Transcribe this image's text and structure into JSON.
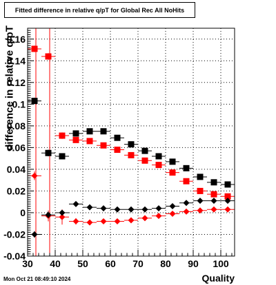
{
  "chart_data": {
    "type": "scatter",
    "title": "Fitted difference in relative q/pT for Global Rec All NoHits",
    "xlabel": "Quality",
    "ylabel": "difference in relative q/pT",
    "xlim": [
      30,
      105
    ],
    "ylim": [
      -0.04,
      0.17
    ],
    "x_ticks": [
      "30",
      "40",
      "50",
      "60",
      "70",
      "80",
      "90",
      "100"
    ],
    "y_ticks": [
      "-0.04",
      "-0.02",
      "0",
      "0.02",
      "0.04",
      "0.06",
      "0.08",
      "0.1",
      "0.12",
      "0.14",
      "0.16"
    ],
    "grid": true,
    "series": [
      {
        "marker": "square",
        "color": "#ff0000",
        "x": [
          32.5,
          37.5,
          42.5,
          47.5,
          52.5,
          57.5,
          62.5,
          67.5,
          72.5,
          77.5,
          82.5,
          87.5,
          92.5,
          97.5,
          102.5
        ],
        "y": [
          0.151,
          0.144,
          0.071,
          0.067,
          0.066,
          0.062,
          0.058,
          0.053,
          0.048,
          0.044,
          0.037,
          0.029,
          0.02,
          0.017,
          0.015
        ],
        "err": [
          0.003,
          0.003,
          0.003,
          0.002,
          0.002,
          0.002,
          0.002,
          0.002,
          0.002,
          0.002,
          0.002,
          0.002,
          0.002,
          0.002,
          0.002
        ]
      },
      {
        "marker": "square",
        "color": "#000000",
        "x": [
          32.5,
          37.5,
          42.5,
          47.5,
          52.5,
          57.5,
          62.5,
          67.5,
          72.5,
          77.5,
          82.5,
          87.5,
          92.5,
          97.5,
          102.5
        ],
        "y": [
          0.103,
          0.055,
          0.052,
          0.073,
          0.075,
          0.075,
          0.069,
          0.063,
          0.057,
          0.052,
          0.047,
          0.041,
          0.033,
          0.028,
          0.026
        ],
        "err": [
          0.003,
          0.003,
          0.002,
          0.002,
          0.002,
          0.002,
          0.002,
          0.002,
          0.002,
          0.002,
          0.002,
          0.002,
          0.002,
          0.002,
          0.002
        ]
      },
      {
        "marker": "diamond",
        "color": "#ff0000",
        "x": [
          32.5,
          37.5,
          42.5,
          47.5,
          52.5,
          57.5,
          62.5,
          67.5,
          72.5,
          77.5,
          82.5,
          87.5,
          92.5,
          97.5,
          102.5
        ],
        "y": [
          0.034,
          -0.003,
          -0.004,
          -0.008,
          -0.009,
          -0.008,
          -0.008,
          -0.007,
          -0.005,
          -0.003,
          -0.001,
          0.001,
          0.002,
          0.003,
          0.003
        ],
        "err": [
          0.004,
          0.005,
          0.007,
          0.003,
          0.002,
          0.002,
          0.002,
          0.002,
          0.002,
          0.002,
          0.002,
          0.002,
          0.002,
          0.002,
          0.002
        ]
      },
      {
        "marker": "diamond",
        "color": "#000000",
        "x": [
          32.5,
          37.5,
          42.5,
          47.5,
          52.5,
          57.5,
          62.5,
          67.5,
          72.5,
          77.5,
          82.5,
          87.5,
          92.5,
          97.5,
          102.5
        ],
        "y": [
          -0.02,
          -0.002,
          0.0,
          0.008,
          0.005,
          0.004,
          0.003,
          0.003,
          0.003,
          0.004,
          0.006,
          0.009,
          0.011,
          0.011,
          0.011
        ],
        "err": [
          0.003,
          0.003,
          0.002,
          0.002,
          0.002,
          0.002,
          0.002,
          0.002,
          0.002,
          0.002,
          0.002,
          0.002,
          0.002,
          0.002,
          0.002
        ]
      }
    ],
    "vertical_lines": [
      {
        "x": 33,
        "color": "#ff0000"
      },
      {
        "x": 38,
        "color": "#ff0000"
      }
    ]
  },
  "footer": {
    "timestamp": "Mon Oct 21 08:49:10 2024"
  }
}
